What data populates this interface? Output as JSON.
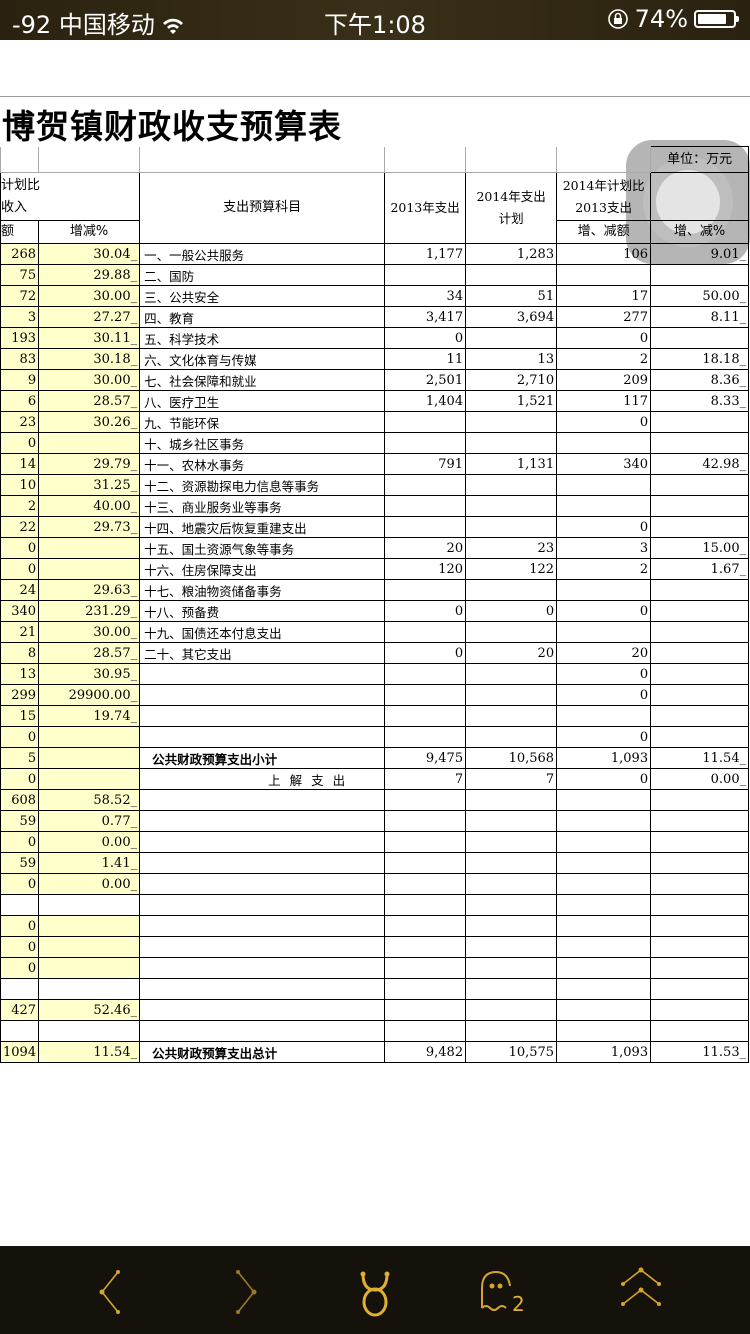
{
  "status_bar": {
    "signal": "-92",
    "carrier": "中国移动",
    "time": "下午1:08",
    "battery": "74%",
    "battery_level": 0.74,
    "icons": [
      "wifi-icon",
      "rotation-lock-icon",
      "battery-icon"
    ]
  },
  "document": {
    "title": "博贺镇财政收支预算表",
    "unit": "单位：万元",
    "headers": {
      "left_group": "计划比\n收入",
      "left_amount": "额",
      "left_pct": "增减%",
      "subject": "支出预算科目",
      "exp2013": "2013年支出",
      "plan2014": "2014年支出\n计划",
      "compare": "2014年计划比\n2013支出",
      "change_amount": "增、减额",
      "change_pct": "增、减%"
    },
    "rows": [
      [
        "268",
        "30.04_",
        "一、一般公共服务",
        "1,177",
        "1,283",
        "106",
        "9.01_"
      ],
      [
        "75",
        "29.88_",
        "二、国防",
        "",
        "",
        "",
        ""
      ],
      [
        "72",
        "30.00_",
        "三、公共安全",
        "34",
        "51",
        "17",
        "50.00_"
      ],
      [
        "3",
        "27.27_",
        "四、教育",
        "3,417",
        "3,694",
        "277",
        "8.11_"
      ],
      [
        "193",
        "30.11_",
        "五、科学技术",
        "0",
        "",
        "0",
        ""
      ],
      [
        "83",
        "30.18_",
        "六、文化体育与传媒",
        "11",
        "13",
        "2",
        "18.18_"
      ],
      [
        "9",
        "30.00_",
        "七、社会保障和就业",
        "2,501",
        "2,710",
        "209",
        "8.36_"
      ],
      [
        "6",
        "28.57_",
        "八、医疗卫生",
        "1,404",
        "1,521",
        "117",
        "8.33_"
      ],
      [
        "23",
        "30.26_",
        "九、节能环保",
        "",
        "",
        "0",
        ""
      ],
      [
        "0",
        "",
        "十、城乡社区事务",
        "",
        "",
        "",
        ""
      ],
      [
        "14",
        "29.79_",
        "十一、农林水事务",
        "791",
        "1,131",
        "340",
        "42.98_"
      ],
      [
        "10",
        "31.25_",
        "十二、资源勘探电力信息等事务",
        "",
        "",
        "",
        ""
      ],
      [
        "2",
        "40.00_",
        "十三、商业服务业等事务",
        "",
        "",
        "",
        ""
      ],
      [
        "22",
        "29.73_",
        "十四、地震灾后恢复重建支出",
        "",
        "",
        "0",
        ""
      ],
      [
        "0",
        "",
        "十五、国土资源气象等事务",
        "20",
        "23",
        "3",
        "15.00_"
      ],
      [
        "0",
        "",
        "十六、住房保障支出",
        "120",
        "122",
        "2",
        "1.67_"
      ],
      [
        "24",
        "29.63_",
        "十七、粮油物资储备事务",
        "",
        "",
        "",
        ""
      ],
      [
        "340",
        "231.29_",
        "十八、预备费",
        "0",
        "0",
        "0",
        ""
      ],
      [
        "21",
        "30.00_",
        "十九、国债还本付息支出",
        "",
        "",
        "",
        ""
      ],
      [
        "8",
        "28.57_",
        "二十、其它支出",
        "0",
        "20",
        "20",
        ""
      ],
      [
        "13",
        "30.95_",
        "",
        "",
        "",
        "0",
        ""
      ],
      [
        "299",
        "29900.00_",
        "",
        "",
        "",
        "0",
        ""
      ],
      [
        "15",
        "19.74_",
        "",
        "",
        "",
        "",
        ""
      ],
      [
        "0",
        "",
        "",
        "",
        "",
        "0",
        ""
      ],
      [
        "5",
        "",
        "公共财政预算支出小计",
        "9,475",
        "10,568",
        "1,093",
        "11.54_"
      ],
      [
        "0",
        "",
        "上解支出",
        "7",
        "7",
        "0",
        "0.00_"
      ],
      [
        "608",
        "58.52_",
        "",
        "",
        "",
        "",
        ""
      ],
      [
        "59",
        "0.77_",
        "",
        "",
        "",
        "",
        ""
      ],
      [
        "0",
        "0.00_",
        "",
        "",
        "",
        "",
        ""
      ],
      [
        "59",
        "1.41_",
        "",
        "",
        "",
        "",
        ""
      ],
      [
        "0",
        "0.00_",
        "",
        "",
        "",
        "",
        ""
      ],
      [
        "",
        "",
        "",
        "",
        "",
        "",
        ""
      ],
      [
        "0",
        "",
        "",
        "",
        "",
        "",
        ""
      ],
      [
        "0",
        "",
        "",
        "",
        "",
        "",
        ""
      ],
      [
        "0",
        "",
        "",
        "",
        "",
        "",
        ""
      ],
      [
        "",
        "",
        "",
        "",
        "",
        "",
        ""
      ],
      [
        "427",
        "52.46_",
        "",
        "",
        "",
        "",
        ""
      ],
      [
        "",
        "",
        "",
        "",
        "",
        "",
        ""
      ],
      [
        "1094",
        "11.54_",
        "公共财政预算支出总计",
        "9,482",
        "10,575",
        "1,093",
        "11.53_"
      ]
    ],
    "highlight_color": "#ffffcc"
  },
  "toolbar": {
    "buttons": [
      "back",
      "forward",
      "taurus",
      "ghost",
      "scroll-top"
    ],
    "ghost_badge": "2",
    "accent": "#d4a52a"
  }
}
